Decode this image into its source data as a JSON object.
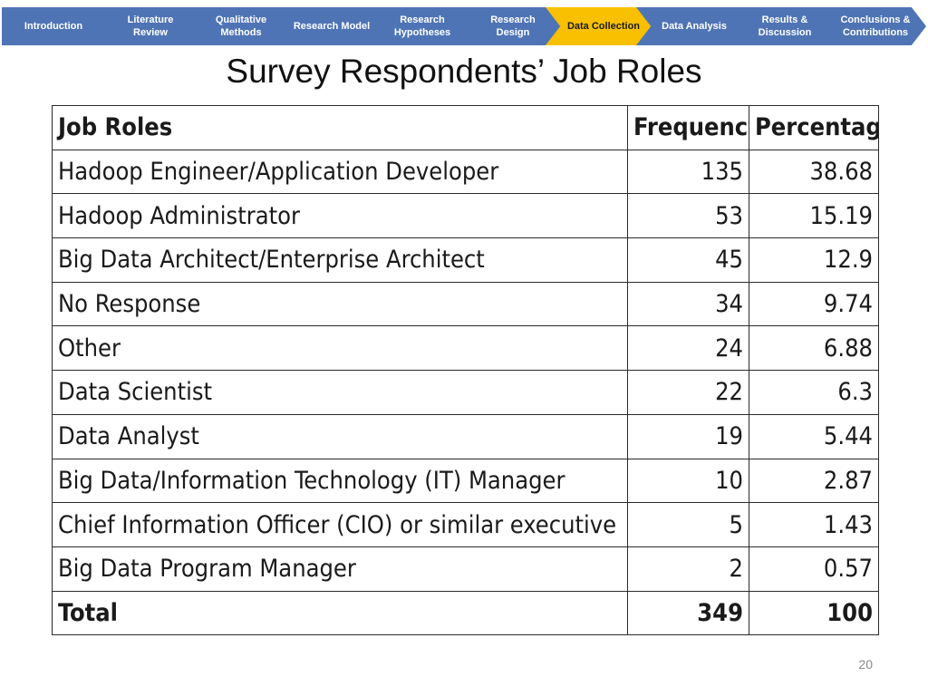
{
  "nav": {
    "steps": [
      {
        "label": "Introduction",
        "active": false
      },
      {
        "label": "Literature Review",
        "active": false
      },
      {
        "label": "Qualitative Methods",
        "active": false
      },
      {
        "label": "Research Model",
        "active": false
      },
      {
        "label": "Research Hypotheses",
        "active": false
      },
      {
        "label": "Research Design",
        "active": false
      },
      {
        "label": "Data Collection",
        "active": true
      },
      {
        "label": "Data Analysis",
        "active": false
      },
      {
        "label": "Results & Discussion",
        "active": false
      },
      {
        "label": "Conclusions & Contributions",
        "active": false
      }
    ]
  },
  "slide": {
    "title": "Survey Respondents’ Job Roles",
    "page_number": "20"
  },
  "table": {
    "headers": [
      "Job Roles",
      "Frequency",
      "Percentage"
    ],
    "rows": [
      {
        "role": "Hadoop Engineer/Application Developer",
        "frequency": "135",
        "percentage": "38.68"
      },
      {
        "role": "Hadoop Administrator",
        "frequency": "53",
        "percentage": "15.19"
      },
      {
        "role": "Big Data Architect/Enterprise Architect",
        "frequency": "45",
        "percentage": "12.9"
      },
      {
        "role": "No Response",
        "frequency": "34",
        "percentage": "9.74"
      },
      {
        "role": "Other",
        "frequency": "24",
        "percentage": "6.88"
      },
      {
        "role": "Data Scientist",
        "frequency": "22",
        "percentage": "6.3"
      },
      {
        "role": "Data Analyst",
        "frequency": "19",
        "percentage": "5.44"
      },
      {
        "role": "Big Data/Information Technology (IT) Manager",
        "frequency": "10",
        "percentage": "2.87"
      },
      {
        "role": "Chief Information Officer (CIO) or similar executive",
        "frequency": "5",
        "percentage": "1.43"
      },
      {
        "role": "Big Data Program Manager",
        "frequency": "2",
        "percentage": "0.57"
      }
    ],
    "total": {
      "role": "Total",
      "frequency": "349",
      "percentage": "100"
    }
  },
  "colors": {
    "nav_blue": "#4f74b5",
    "nav_active": "#f8c000"
  }
}
